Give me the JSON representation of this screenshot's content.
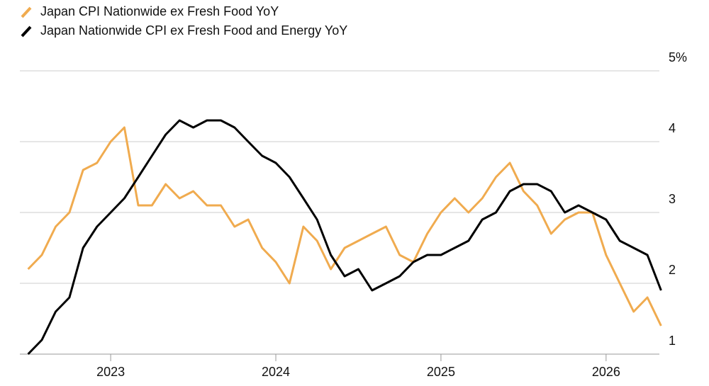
{
  "chart_data": {
    "type": "line",
    "x": [
      2022.5,
      2022.583,
      2022.667,
      2022.75,
      2022.833,
      2022.917,
      2023.0,
      2023.083,
      2023.167,
      2023.25,
      2023.333,
      2023.417,
      2023.5,
      2023.583,
      2023.667,
      2023.75,
      2023.833,
      2023.917,
      2024.0,
      2024.083,
      2024.167,
      2024.25,
      2024.333,
      2024.417,
      2024.5,
      2024.583,
      2024.667,
      2024.75,
      2024.833,
      2024.917,
      2025.0,
      2025.083,
      2025.167,
      2025.25,
      2025.333,
      2025.417,
      2025.5,
      2025.583,
      2025.667,
      2025.75,
      2025.833,
      2025.917,
      2026.0,
      2026.083,
      2026.167,
      2026.25,
      2026.333
    ],
    "series": [
      {
        "name": "Japan CPI Nationwide ex Fresh Food YoY",
        "color": "#f0ab4f",
        "values": [
          2.2,
          2.4,
          2.8,
          3.0,
          3.6,
          3.7,
          4.0,
          4.2,
          3.1,
          3.1,
          3.4,
          3.2,
          3.3,
          3.1,
          3.1,
          2.8,
          2.9,
          2.5,
          2.3,
          2.0,
          2.8,
          2.6,
          2.2,
          2.5,
          2.6,
          2.7,
          2.8,
          2.4,
          2.3,
          2.7,
          3.0,
          3.2,
          3.0,
          3.2,
          3.5,
          3.7,
          3.3,
          3.1,
          2.7,
          2.9,
          3.0,
          3.0,
          2.4,
          2.0,
          1.6,
          1.8,
          1.4
        ]
      },
      {
        "name": "Japan Nationwide CPI ex Fresh Food and Energy YoY",
        "color": "#000000",
        "values": [
          1.0,
          1.2,
          1.6,
          1.8,
          2.5,
          2.8,
          3.0,
          3.2,
          3.5,
          3.8,
          4.1,
          4.3,
          4.2,
          4.3,
          4.3,
          4.2,
          4.0,
          3.8,
          3.7,
          3.5,
          3.2,
          2.9,
          2.4,
          2.1,
          2.2,
          1.9,
          2.0,
          2.1,
          2.3,
          2.4,
          2.4,
          2.5,
          2.6,
          2.9,
          3.0,
          3.3,
          3.4,
          3.4,
          3.3,
          3.0,
          3.1,
          3.0,
          2.9,
          2.6,
          2.5,
          2.4,
          1.9
        ]
      }
    ],
    "xlim": [
      2022.45,
      2026.43
    ],
    "xticks": [
      2023,
      2024,
      2025,
      2026
    ],
    "ylim": [
      1,
      5
    ],
    "yticks": [
      1,
      2,
      3,
      4,
      {
        "value": 5,
        "label": "5%"
      }
    ],
    "grid": true
  }
}
